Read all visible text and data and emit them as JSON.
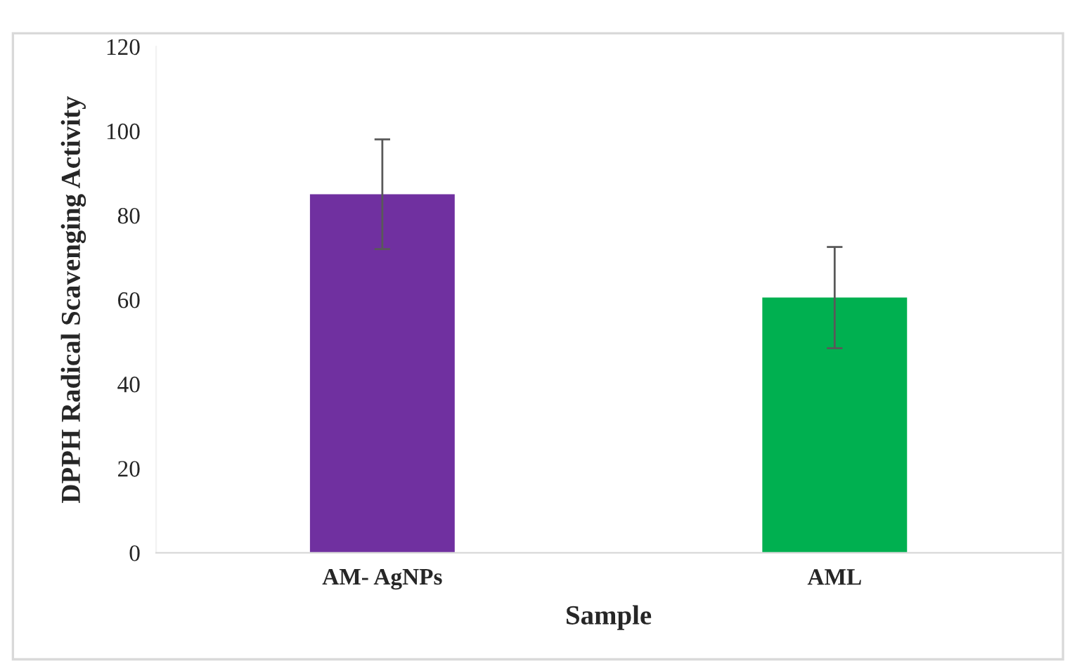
{
  "chart_data": {
    "type": "bar",
    "xlabel": "Sample",
    "ylabel": "DPPH Radical Scavenging Activity",
    "categories": [
      "AM- AgNPs",
      "AML"
    ],
    "values": [
      85,
      60.5
    ],
    "errors": [
      13,
      12
    ],
    "colors": [
      "#7030a0",
      "#00b050"
    ],
    "ylim": [
      0,
      120
    ],
    "yticks": [
      0,
      20,
      40,
      60,
      80,
      100,
      120
    ],
    "grid": false,
    "legend": false
  }
}
